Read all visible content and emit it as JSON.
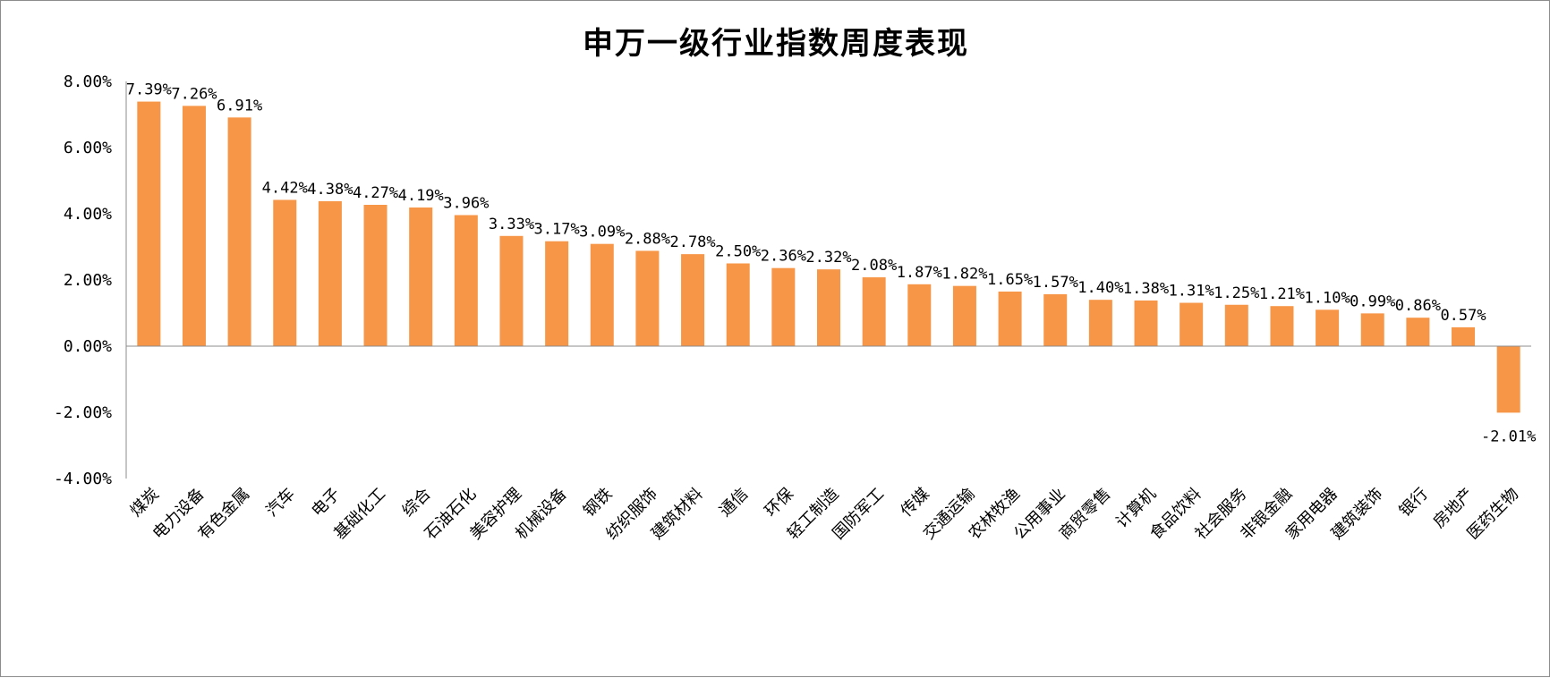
{
  "chart_data": {
    "type": "bar",
    "title": "申万一级行业指数周度表现",
    "xlabel": "",
    "ylabel": "",
    "ylim": [
      -4,
      8
    ],
    "yticks": [
      8,
      6,
      4,
      2,
      0,
      -2,
      -4
    ],
    "ytick_labels": [
      "8.00%",
      "6.00%",
      "4.00%",
      "2.00%",
      "0.00%",
      "-2.00%",
      "-4.00%"
    ],
    "grid": false,
    "legend": "none",
    "bar_color": "#F79646",
    "categories": [
      "煤炭",
      "电力设备",
      "有色金属",
      "汽车",
      "电子",
      "基础化工",
      "综合",
      "石油石化",
      "美容护理",
      "机械设备",
      "钢铁",
      "纺织服饰",
      "建筑材料",
      "通信",
      "环保",
      "轻工制造",
      "国防军工",
      "传媒",
      "交通运输",
      "农林牧渔",
      "公用事业",
      "商贸零售",
      "计算机",
      "食品饮料",
      "社会服务",
      "非银金融",
      "家用电器",
      "建筑装饰",
      "银行",
      "房地产",
      "医药生物"
    ],
    "values": [
      7.39,
      7.26,
      6.91,
      4.42,
      4.38,
      4.27,
      4.19,
      3.96,
      3.33,
      3.17,
      3.09,
      2.88,
      2.78,
      2.5,
      2.36,
      2.32,
      2.08,
      1.87,
      1.82,
      1.65,
      1.57,
      1.4,
      1.38,
      1.31,
      1.25,
      1.21,
      1.1,
      0.99,
      0.86,
      0.57,
      -2.01
    ],
    "value_labels": [
      "7.39%",
      "7.26%",
      "6.91%",
      "4.42%",
      "4.38%",
      "4.27%",
      "4.19%",
      "3.96%",
      "3.33%",
      "3.17%",
      "3.09%",
      "2.88%",
      "2.78%",
      "2.50%",
      "2.36%",
      "2.32%",
      "2.08%",
      "1.87%",
      "1.82%",
      "1.65%",
      "1.57%",
      "1.40%",
      "1.38%",
      "1.31%",
      "1.25%",
      "1.21%",
      "1.10%",
      "0.99%",
      "0.86%",
      "0.57%",
      "-2.01%"
    ]
  }
}
